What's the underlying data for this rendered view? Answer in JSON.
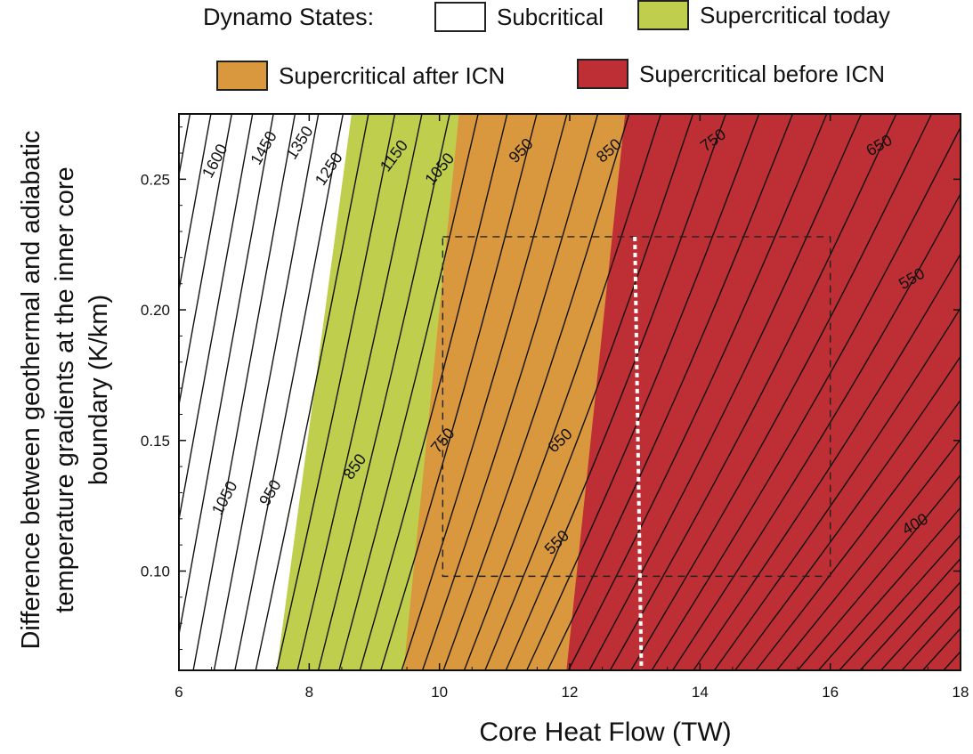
{
  "legend": {
    "title": "Dynamo States:",
    "items": [
      {
        "label": "Subcritical",
        "color": "#ffffff"
      },
      {
        "label": "Supercritical today",
        "color": "#bfce4d"
      },
      {
        "label": "Supercritical after ICN",
        "color": "#d9973e"
      },
      {
        "label": "Supercritical before ICN",
        "color": "#bd2f34"
      }
    ]
  },
  "chart_data": {
    "type": "contour",
    "xlabel": "Core Heat Flow (TW)",
    "ylabel_lines": [
      "Difference between geothermal and adiabatic",
      "temperature gradients at the inner core",
      "boundary   (K/km)"
    ],
    "xlim": [
      6,
      18
    ],
    "ylim": [
      0.062,
      0.275
    ],
    "xticks": [
      6,
      8,
      10,
      12,
      14,
      16,
      18
    ],
    "yticks": [
      0.1,
      0.15,
      0.2,
      0.25
    ],
    "regions": [
      {
        "state": "Subcritical",
        "color": "#ffffff",
        "boundary_bottom_x": 7.5,
        "boundary_top_x": 8.65
      },
      {
        "state": "Supercritical today",
        "color": "#bfce4d",
        "boundary_bottom_x": 9.45,
        "boundary_top_x": 10.3
      },
      {
        "state": "Supercritical after ICN",
        "color": "#d9973e",
        "boundary_bottom_x": 11.95,
        "boundary_top_x": 12.85
      },
      {
        "state": "Supercritical before ICN",
        "color": "#bd2f34"
      }
    ],
    "contour_labels": [
      {
        "text": "1600",
        "x": 6.55,
        "y": 0.257
      },
      {
        "text": "1450",
        "x": 7.3,
        "y": 0.262
      },
      {
        "text": "1350",
        "x": 7.85,
        "y": 0.264
      },
      {
        "text": "1250",
        "x": 8.3,
        "y": 0.254
      },
      {
        "text": "1150",
        "x": 9.3,
        "y": 0.259
      },
      {
        "text": "1050",
        "x": 10.0,
        "y": 0.254
      },
      {
        "text": "950",
        "x": 11.25,
        "y": 0.261
      },
      {
        "text": "850",
        "x": 12.6,
        "y": 0.261
      },
      {
        "text": "750",
        "x": 14.2,
        "y": 0.265
      },
      {
        "text": "650",
        "x": 16.75,
        "y": 0.263
      },
      {
        "text": "550",
        "x": 17.25,
        "y": 0.212
      },
      {
        "text": "1050",
        "x": 6.7,
        "y": 0.128
      },
      {
        "text": "950",
        "x": 7.4,
        "y": 0.13
      },
      {
        "text": "850",
        "x": 8.7,
        "y": 0.14
      },
      {
        "text": "750",
        "x": 10.05,
        "y": 0.15
      },
      {
        "text": "650",
        "x": 11.85,
        "y": 0.15
      },
      {
        "text": "550",
        "x": 11.8,
        "y": 0.111
      },
      {
        "text": "400",
        "x": 17.3,
        "y": 0.118
      }
    ],
    "contour_spacing_x": 0.32,
    "dashed_box": {
      "x": [
        10.05,
        16.0
      ],
      "y": [
        0.098,
        0.228
      ]
    },
    "white_dotted_line": {
      "x": [
        13.0,
        13.1
      ],
      "y": [
        0.228,
        0.062
      ]
    }
  }
}
